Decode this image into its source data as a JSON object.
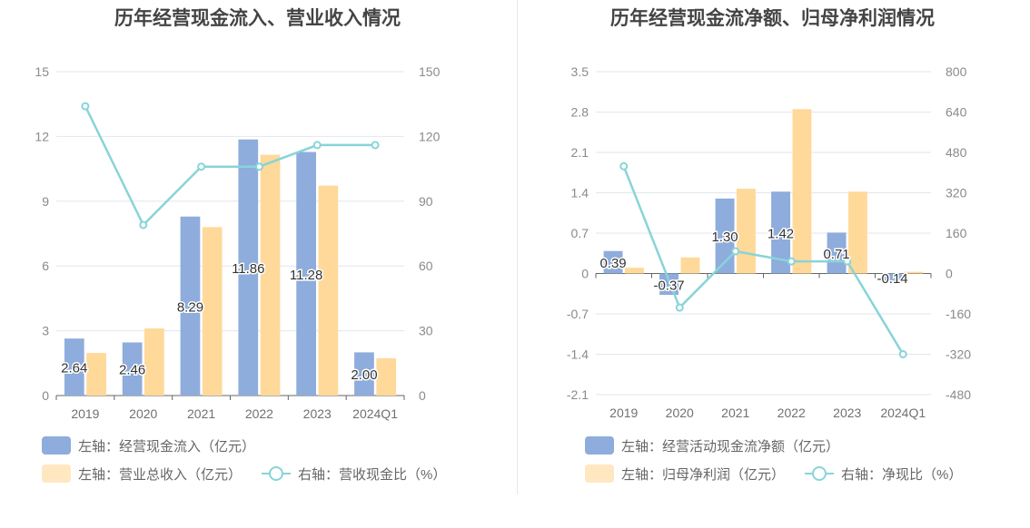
{
  "chart_data": [
    {
      "type": "bar",
      "title": "历年经营现金流入、营业收入情况",
      "categories": [
        "2019",
        "2020",
        "2021",
        "2022",
        "2023",
        "2024Q1"
      ],
      "left_axis": {
        "ticks": [
          0,
          3,
          6,
          9,
          12,
          15
        ],
        "range": [
          0,
          15
        ]
      },
      "right_axis": {
        "ticks": [
          0,
          30,
          60,
          90,
          120,
          150
        ],
        "range": [
          0,
          150
        ]
      },
      "series": [
        {
          "name": "左轴：经营现金流入（亿元）",
          "axis": "left",
          "kind": "bar",
          "color": "#8eacdc",
          "values": [
            2.64,
            2.46,
            8.29,
            11.86,
            11.28,
            2.0
          ],
          "labels": [
            "2.64",
            "2.46",
            "8.29",
            "11.86",
            "11.28",
            "2.00"
          ]
        },
        {
          "name": "左轴：营业总收入（亿元）",
          "axis": "left",
          "kind": "bar",
          "color": "#ffd99a",
          "values": [
            1.97,
            3.11,
            7.8,
            11.15,
            9.72,
            1.73
          ]
        },
        {
          "name": "右轴：营收现金比（%）",
          "axis": "right",
          "kind": "line",
          "color": "#88d4d8",
          "values": [
            134,
            79,
            106,
            106,
            116,
            116
          ]
        }
      ],
      "legend": "bottom-left",
      "grid": true
    },
    {
      "type": "bar",
      "title": "历年经营现金流净额、归母净利润情况",
      "categories": [
        "2019",
        "2020",
        "2021",
        "2022",
        "2023",
        "2024Q1"
      ],
      "left_axis": {
        "ticks": [
          -2.1,
          -1.4,
          -0.7,
          0,
          0.7,
          1.4,
          2.1,
          2.8,
          3.5
        ],
        "tick_labels": [
          "-2.1",
          "-1.4",
          "-0.7",
          "0",
          "0.7",
          "1.4",
          "2.1",
          "2.8",
          "3.5"
        ],
        "range": [
          -2.1,
          3.5
        ]
      },
      "right_axis": {
        "ticks": [
          -480,
          -320,
          -160,
          0,
          160,
          320,
          480,
          640,
          800
        ],
        "range": [
          -480,
          800
        ]
      },
      "series": [
        {
          "name": "左轴：经营活动现金流净额（亿元）",
          "axis": "left",
          "kind": "bar",
          "color": "#8eacdc",
          "values": [
            0.39,
            -0.37,
            1.3,
            1.42,
            0.71,
            -0.14
          ],
          "labels": [
            "0.39",
            "-0.37",
            "1.30",
            "1.42",
            "0.71",
            "-0.14"
          ]
        },
        {
          "name": "左轴：归母净利润（亿元）",
          "axis": "left",
          "kind": "bar",
          "color": "#ffd99a",
          "values": [
            0.1,
            0.28,
            1.47,
            2.85,
            1.42,
            0.03
          ]
        },
        {
          "name": "右轴：净现比（%）",
          "axis": "right",
          "kind": "line",
          "color": "#88d4d8",
          "values": [
            425,
            -135,
            88,
            48,
            48,
            -320
          ]
        }
      ],
      "legend": "bottom-left",
      "grid": true
    }
  ]
}
